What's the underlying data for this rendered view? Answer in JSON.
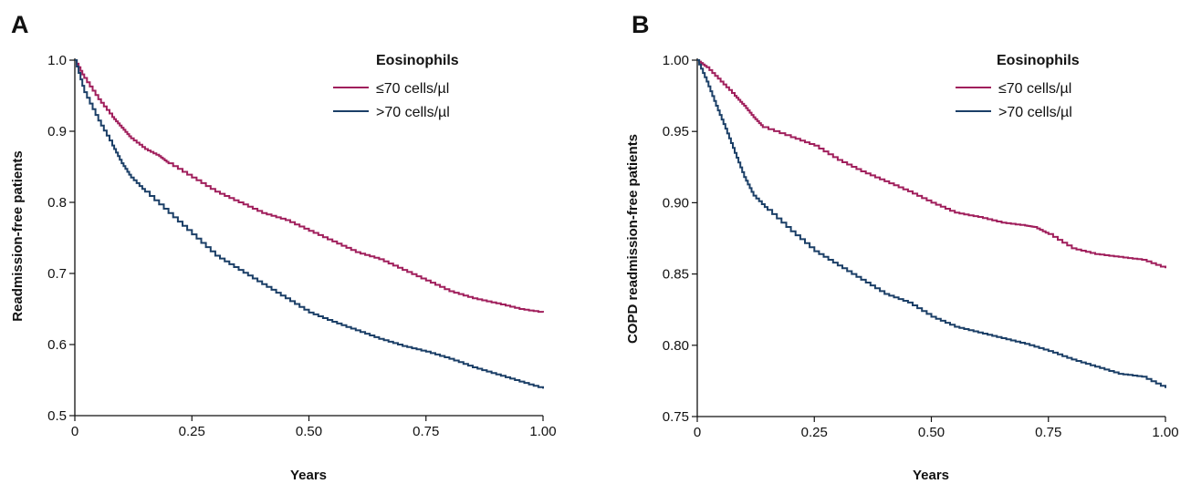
{
  "colors": {
    "le70": "#a01f5c",
    "gt70": "#1b3f67"
  },
  "chart_data": [
    {
      "type": "line",
      "panel": "A",
      "xlabel": "Years",
      "ylabel": "Readmission-free patients",
      "xlim": [
        0,
        1
      ],
      "ylim": [
        0.5,
        1.0
      ],
      "x_ticks": [
        0,
        0.25,
        0.5,
        0.75,
        1.0
      ],
      "x_tick_labels": [
        "0",
        "0.25",
        "0.50",
        "0.75",
        "1.00"
      ],
      "y_ticks": [
        0.5,
        0.6,
        0.7,
        0.8,
        0.9,
        1.0
      ],
      "y_tick_labels": [
        "0.5",
        "0.6",
        "0.7",
        "0.8",
        "0.9",
        "1.0"
      ],
      "legend_title": "Eosinophils",
      "legend_position": "top-right",
      "grid": false,
      "series": [
        {
          "name": "≤70 cells/µl",
          "color": "#a01f5c",
          "x": [
            0,
            0.02,
            0.05,
            0.08,
            0.1,
            0.12,
            0.15,
            0.18,
            0.2,
            0.25,
            0.3,
            0.35,
            0.4,
            0.45,
            0.5,
            0.55,
            0.6,
            0.65,
            0.7,
            0.75,
            0.8,
            0.85,
            0.9,
            0.95,
            1.0
          ],
          "y": [
            1.0,
            0.975,
            0.945,
            0.92,
            0.905,
            0.89,
            0.875,
            0.865,
            0.855,
            0.835,
            0.815,
            0.8,
            0.785,
            0.775,
            0.76,
            0.745,
            0.73,
            0.72,
            0.705,
            0.69,
            0.675,
            0.665,
            0.658,
            0.65,
            0.645
          ]
        },
        {
          "name": ">70 cells/µl",
          "color": "#1b3f67",
          "x": [
            0,
            0.02,
            0.05,
            0.08,
            0.1,
            0.12,
            0.15,
            0.2,
            0.25,
            0.3,
            0.35,
            0.4,
            0.45,
            0.5,
            0.55,
            0.6,
            0.65,
            0.7,
            0.75,
            0.8,
            0.85,
            0.9,
            0.95,
            1.0
          ],
          "y": [
            1.0,
            0.955,
            0.915,
            0.88,
            0.855,
            0.835,
            0.815,
            0.785,
            0.755,
            0.725,
            0.705,
            0.685,
            0.665,
            0.645,
            0.632,
            0.62,
            0.608,
            0.598,
            0.59,
            0.58,
            0.568,
            0.558,
            0.548,
            0.538
          ]
        }
      ]
    },
    {
      "type": "line",
      "panel": "B",
      "xlabel": "Years",
      "ylabel": "COPD readmission-free patients",
      "xlim": [
        0,
        1
      ],
      "ylim": [
        0.75,
        1.0
      ],
      "x_ticks": [
        0,
        0.25,
        0.5,
        0.75,
        1.0
      ],
      "x_tick_labels": [
        "0",
        "0.25",
        "0.50",
        "0.75",
        "1.00"
      ],
      "y_ticks": [
        0.75,
        0.8,
        0.85,
        0.9,
        0.95,
        1.0
      ],
      "y_tick_labels": [
        "0.75",
        "0.80",
        "0.85",
        "0.90",
        "0.95",
        "1.00"
      ],
      "legend_title": "Eosinophils",
      "legend_position": "top-right",
      "grid": false,
      "series": [
        {
          "name": "≤70 cells/µl",
          "color": "#a01f5c",
          "x": [
            0,
            0.02,
            0.05,
            0.08,
            0.1,
            0.12,
            0.14,
            0.2,
            0.25,
            0.3,
            0.35,
            0.4,
            0.45,
            0.5,
            0.55,
            0.6,
            0.65,
            0.7,
            0.72,
            0.75,
            0.8,
            0.85,
            0.9,
            0.95,
            1.0
          ],
          "y": [
            1.0,
            0.995,
            0.985,
            0.975,
            0.968,
            0.96,
            0.953,
            0.946,
            0.94,
            0.93,
            0.922,
            0.915,
            0.908,
            0.9,
            0.893,
            0.89,
            0.886,
            0.884,
            0.883,
            0.878,
            0.868,
            0.864,
            0.862,
            0.86,
            0.854
          ]
        },
        {
          "name": ">70 cells/µl",
          "color": "#1b3f67",
          "x": [
            0,
            0.02,
            0.04,
            0.06,
            0.08,
            0.1,
            0.12,
            0.15,
            0.2,
            0.25,
            0.3,
            0.35,
            0.4,
            0.45,
            0.5,
            0.55,
            0.6,
            0.65,
            0.7,
            0.75,
            0.8,
            0.85,
            0.9,
            0.95,
            1.0
          ],
          "y": [
            1.0,
            0.985,
            0.968,
            0.952,
            0.935,
            0.918,
            0.905,
            0.895,
            0.88,
            0.866,
            0.856,
            0.846,
            0.836,
            0.83,
            0.82,
            0.813,
            0.809,
            0.805,
            0.801,
            0.796,
            0.79,
            0.785,
            0.78,
            0.778,
            0.77
          ]
        }
      ]
    }
  ]
}
